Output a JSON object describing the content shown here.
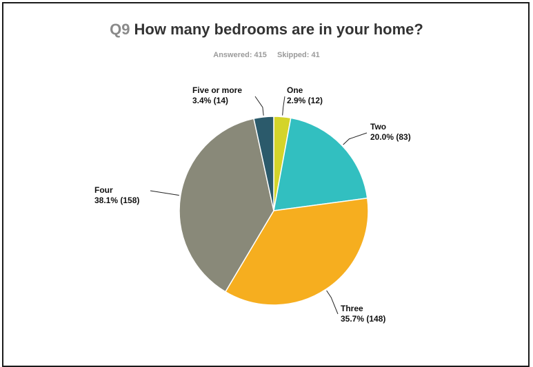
{
  "header": {
    "question_number": "Q9",
    "question_text": "How many bedrooms are in your home?",
    "answered": "Answered: 415",
    "skipped": "Skipped: 41"
  },
  "chart_data": {
    "type": "pie",
    "title": "How many bedrooms are in your home?",
    "slices": [
      {
        "label": "One",
        "percent": 2.9,
        "count": 12,
        "value_text": "2.9% (12)",
        "color": "#d4d42a"
      },
      {
        "label": "Two",
        "percent": 20.0,
        "count": 83,
        "value_text": "20.0% (83)",
        "color": "#32bfc0"
      },
      {
        "label": "Three",
        "percent": 35.7,
        "count": 148,
        "value_text": "35.7% (148)",
        "color": "#f6ae1f"
      },
      {
        "label": "Four",
        "percent": 38.1,
        "count": 158,
        "value_text": "38.1% (158)",
        "color": "#898979"
      },
      {
        "label": "Five or more",
        "percent": 3.4,
        "count": 14,
        "value_text": "3.4% (14)",
        "color": "#2b5a6b"
      }
    ]
  }
}
